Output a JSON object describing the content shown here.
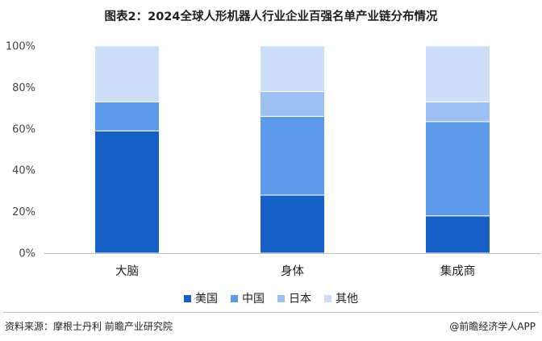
{
  "title": "图表2：2024全球人形机器人行业企业百强名单产业链分布情况",
  "chart_data": {
    "type": "bar",
    "stacked": true,
    "categories": [
      "大脑",
      "身体",
      "集成商"
    ],
    "series": [
      {
        "name": "美国",
        "color": "#1660c8",
        "values": [
          59,
          28,
          18
        ]
      },
      {
        "name": "中国",
        "color": "#5b9bea",
        "values": [
          14,
          38,
          45.5
        ]
      },
      {
        "name": "日本",
        "color": "#9cc0f1",
        "values": [
          0,
          12,
          9.5
        ]
      },
      {
        "name": "其他",
        "color": "#ccdef7",
        "values": [
          27,
          22,
          27
        ]
      }
    ],
    "yticks": [
      "0%",
      "20%",
      "40%",
      "60%",
      "80%",
      "100%"
    ],
    "ylim": [
      0,
      100
    ],
    "grid": false,
    "legend": "bottom"
  },
  "source": "资料来源：摩根士丹利 前瞻产业研究院",
  "credit": "@前瞻经济学人APP"
}
